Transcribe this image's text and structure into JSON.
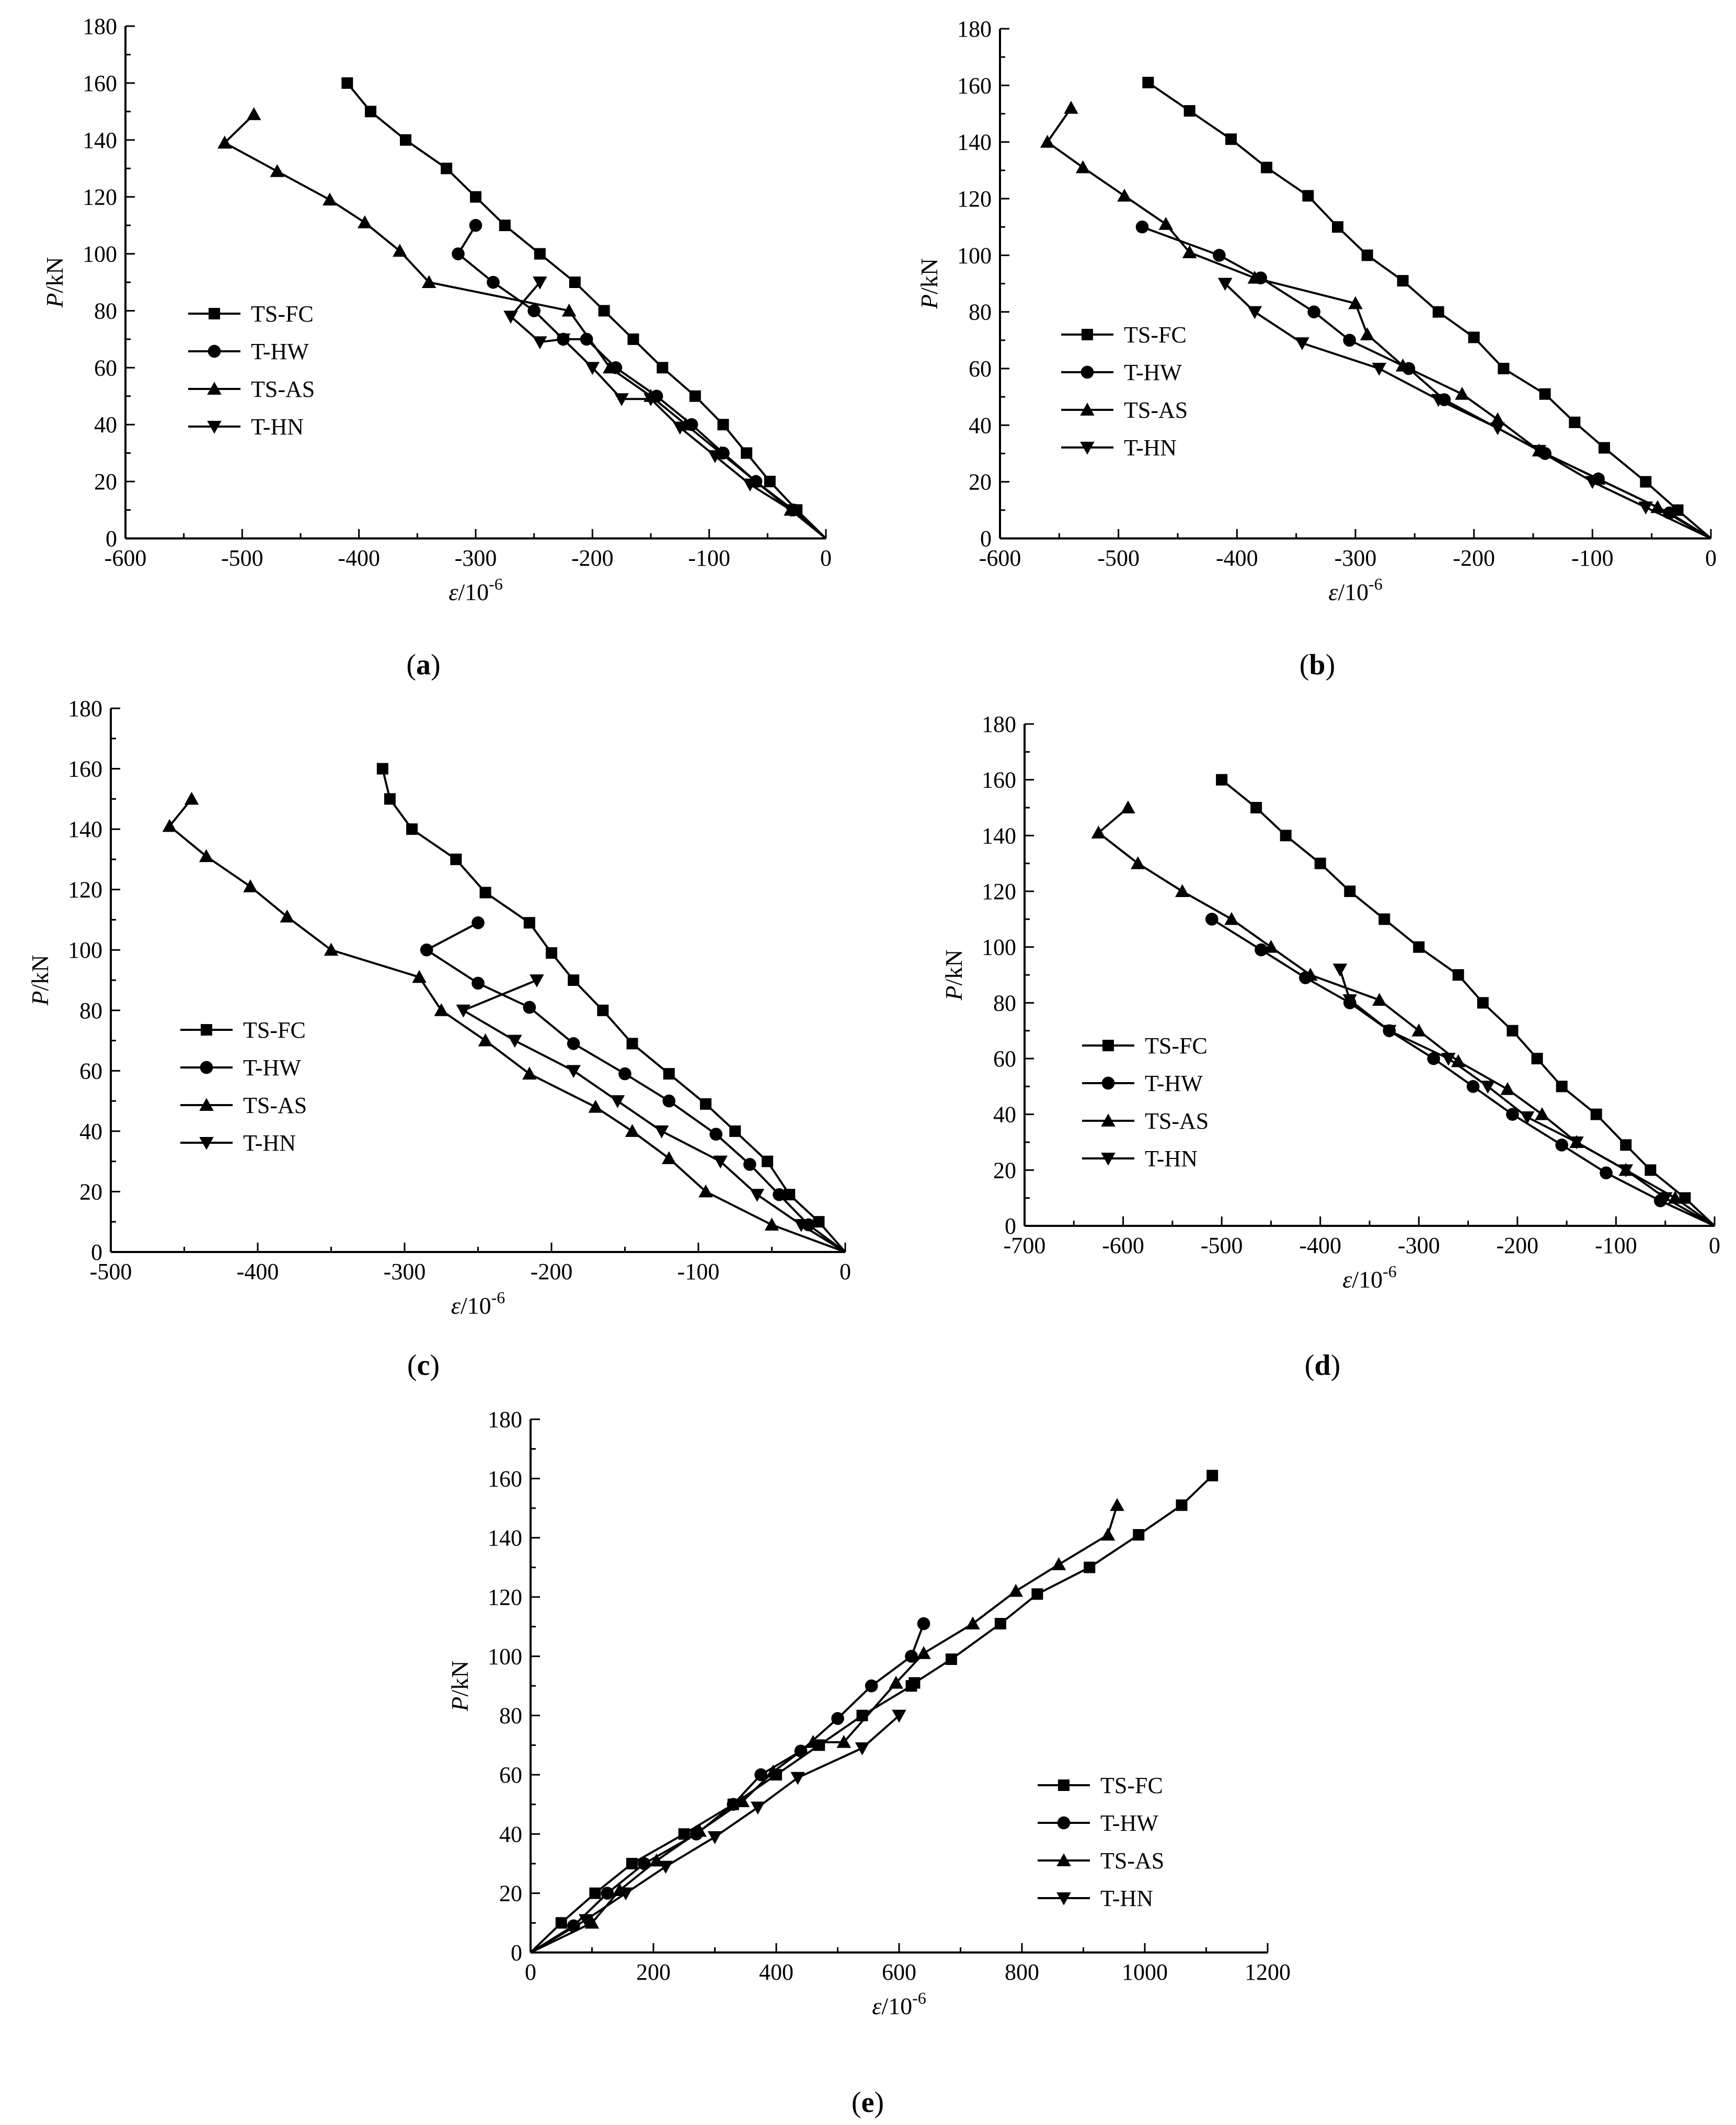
{
  "figure": {
    "background": "#ffffff",
    "line_color": "#000000"
  },
  "chart_data": [
    {
      "id": "a",
      "type": "line",
      "caption": "(a)",
      "caption_parts": [
        "(",
        "a",
        ")"
      ],
      "xlabel": "ε/10⁻⁶",
      "xlabel_parts": [
        "ε",
        "/10",
        "-6"
      ],
      "ylabel": "P/kN",
      "ylabel_parts": [
        "P",
        "/kN"
      ],
      "xlim": [
        -600,
        0
      ],
      "ylim": [
        0,
        180
      ],
      "xticks": [
        -600,
        -500,
        -400,
        -300,
        -200,
        -100,
        0
      ],
      "yticks": [
        0,
        20,
        40,
        60,
        80,
        100,
        120,
        140,
        160,
        180
      ],
      "legend_position": "center-left",
      "series": [
        {
          "name": "TS-FC",
          "marker": "square",
          "x": [
            0,
            -25,
            -48,
            -68,
            -88,
            -112,
            -140,
            -165,
            -190,
            -215,
            -245,
            -275,
            -300,
            -325,
            -360,
            -390,
            -410
          ],
          "y": [
            0,
            10,
            20,
            30,
            40,
            50,
            60,
            70,
            80,
            90,
            100,
            110,
            120,
            130,
            140,
            150,
            160
          ]
        },
        {
          "name": "T-HW",
          "marker": "circle",
          "x": [
            0,
            -28,
            -60,
            -88,
            -115,
            -145,
            -180,
            -205,
            -225,
            -250,
            -285,
            -315,
            -300
          ],
          "y": [
            0,
            10,
            20,
            30,
            40,
            50,
            60,
            70,
            70,
            80,
            90,
            100,
            110
          ]
        },
        {
          "name": "TS-AS",
          "marker": "triangle-up",
          "x": [
            0,
            -30,
            -60,
            -90,
            -120,
            -150,
            -185,
            -220,
            -340,
            -365,
            -395,
            -425,
            -470,
            -515,
            -490
          ],
          "y": [
            0,
            10,
            20,
            30,
            40,
            50,
            60,
            80,
            90,
            101,
            111,
            119,
            129,
            139,
            149
          ]
        },
        {
          "name": "T-HN",
          "marker": "triangle-down",
          "x": [
            0,
            -30,
            -65,
            -95,
            -125,
            -150,
            -175,
            -200,
            -225,
            -245,
            -270,
            -245
          ],
          "y": [
            0,
            10,
            19,
            29,
            39,
            49,
            49,
            60,
            70,
            69,
            78,
            90
          ]
        }
      ]
    },
    {
      "id": "b",
      "type": "line",
      "caption": "(b)",
      "caption_parts": [
        "(",
        "b",
        ")"
      ],
      "xlabel": "ε/10⁻⁶",
      "xlabel_parts": [
        "ε",
        "/10",
        "-6"
      ],
      "ylabel": "P/kN",
      "ylabel_parts": [
        "P",
        "/kN"
      ],
      "xlim": [
        -600,
        0
      ],
      "ylim": [
        0,
        180
      ],
      "xticks": [
        -600,
        -500,
        -400,
        -300,
        -200,
        -100,
        0
      ],
      "yticks": [
        0,
        20,
        40,
        60,
        80,
        100,
        120,
        140,
        160,
        180
      ],
      "legend_position": "center-left",
      "series": [
        {
          "name": "TS-FC",
          "marker": "square",
          "x": [
            0,
            -28,
            -55,
            -90,
            -115,
            -140,
            -175,
            -200,
            -230,
            -260,
            -290,
            -315,
            -340,
            -375,
            -405,
            -440,
            -475
          ],
          "y": [
            0,
            10,
            20,
            32,
            41,
            51,
            60,
            71,
            80,
            91,
            100,
            110,
            121,
            131,
            141,
            151,
            161
          ]
        },
        {
          "name": "T-HW",
          "marker": "circle",
          "x": [
            0,
            -35,
            -95,
            -140,
            -225,
            -255,
            -305,
            -335,
            -380,
            -415,
            -480
          ],
          "y": [
            0,
            9,
            21,
            30,
            49,
            60,
            70,
            80,
            92,
            100,
            110
          ]
        },
        {
          "name": "TS-AS",
          "marker": "triangle-up",
          "x": [
            0,
            -45,
            -95,
            -145,
            -180,
            -210,
            -260,
            -290,
            -300,
            -385,
            -440,
            -460,
            -495,
            -530,
            -560,
            -540
          ],
          "y": [
            0,
            11,
            21,
            31,
            42,
            51,
            61,
            72,
            83,
            92,
            101,
            111,
            121,
            131,
            140,
            152
          ]
        },
        {
          "name": "T-HN",
          "marker": "triangle-down",
          "x": [
            0,
            -55,
            -100,
            -145,
            -180,
            -230,
            -280,
            -345,
            -385,
            -410
          ],
          "y": [
            0,
            11,
            20,
            31,
            39,
            49,
            60,
            69,
            80,
            90
          ]
        }
      ]
    },
    {
      "id": "c",
      "type": "line",
      "caption": "(c)",
      "caption_parts": [
        "(",
        "c",
        ")"
      ],
      "xlabel": "ε/10⁻⁶",
      "xlabel_parts": [
        "ε",
        "/10",
        "-6"
      ],
      "ylabel": "P/kN",
      "ylabel_parts": [
        "P",
        "/kN"
      ],
      "xlim": [
        -500,
        0
      ],
      "ylim": [
        0,
        180
      ],
      "xticks": [
        -500,
        -400,
        -300,
        -200,
        -100,
        0
      ],
      "yticks": [
        0,
        20,
        40,
        60,
        80,
        100,
        120,
        140,
        160,
        180
      ],
      "legend_position": "center-left",
      "series": [
        {
          "name": "TS-FC",
          "marker": "square",
          "x": [
            0,
            -18,
            -38,
            -53,
            -75,
            -95,
            -120,
            -145,
            -165,
            -185,
            -200,
            -215,
            -245,
            -265,
            -295,
            -310,
            -315
          ],
          "y": [
            0,
            10,
            19,
            30,
            40,
            49,
            59,
            69,
            80,
            90,
            99,
            109,
            119,
            130,
            140,
            150,
            160
          ]
        },
        {
          "name": "T-HW",
          "marker": "circle",
          "x": [
            0,
            -25,
            -45,
            -65,
            -88,
            -120,
            -150,
            -185,
            -215,
            -250,
            -285,
            -250
          ],
          "y": [
            0,
            9,
            19,
            29,
            39,
            50,
            59,
            69,
            81,
            89,
            100,
            109
          ]
        },
        {
          "name": "TS-AS",
          "marker": "triangle-up",
          "x": [
            0,
            -50,
            -95,
            -120,
            -145,
            -170,
            -215,
            -245,
            -275,
            -290,
            -350,
            -380,
            -405,
            -435,
            -460,
            -445
          ],
          "y": [
            0,
            9,
            20,
            31,
            40,
            48,
            59,
            70,
            80,
            91,
            100,
            111,
            121,
            131,
            141,
            150
          ]
        },
        {
          "name": "T-HN",
          "marker": "triangle-down",
          "x": [
            0,
            -30,
            -60,
            -85,
            -125,
            -155,
            -185,
            -225,
            -260,
            -210
          ],
          "y": [
            0,
            9,
            19,
            30,
            40,
            50,
            60,
            70,
            80,
            90
          ]
        }
      ]
    },
    {
      "id": "d",
      "type": "line",
      "caption": "(d)",
      "caption_parts": [
        "(",
        "d",
        ")"
      ],
      "xlabel": "ε/10⁻⁶",
      "xlabel_parts": [
        "ε",
        "/10",
        "-6"
      ],
      "ylabel": "P/kN",
      "ylabel_parts": [
        "P",
        "/kN"
      ],
      "xlim": [
        -700,
        0
      ],
      "ylim": [
        0,
        180
      ],
      "xticks": [
        -700,
        -600,
        -500,
        -400,
        -300,
        -200,
        -100,
        0
      ],
      "yticks": [
        0,
        20,
        40,
        60,
        80,
        100,
        120,
        140,
        160,
        180
      ],
      "legend_position": "center-left",
      "series": [
        {
          "name": "TS-FC",
          "marker": "square",
          "x": [
            0,
            -30,
            -65,
            -90,
            -120,
            -155,
            -180,
            -205,
            -235,
            -260,
            -300,
            -335,
            -370,
            -400,
            -435,
            -465,
            -500
          ],
          "y": [
            0,
            10,
            20,
            29,
            40,
            50,
            60,
            70,
            80,
            90,
            100,
            110,
            120,
            130,
            140,
            150,
            160
          ]
        },
        {
          "name": "T-HW",
          "marker": "circle",
          "x": [
            0,
            -55,
            -110,
            -155,
            -205,
            -245,
            -285,
            -330,
            -370,
            -415,
            -460,
            -510
          ],
          "y": [
            0,
            9,
            19,
            29,
            40,
            50,
            60,
            70,
            80,
            89,
            99,
            110
          ]
        },
        {
          "name": "TS-AS",
          "marker": "triangle-up",
          "x": [
            0,
            -40,
            -90,
            -140,
            -175,
            -210,
            -260,
            -300,
            -340,
            -410,
            -450,
            -490,
            -540,
            -585,
            -625,
            -595
          ],
          "y": [
            0,
            10,
            20,
            30,
            40,
            49,
            59,
            70,
            81,
            90,
            100,
            110,
            120,
            130,
            141,
            150
          ]
        },
        {
          "name": "T-HN",
          "marker": "triangle-down",
          "x": [
            0,
            -50,
            -90,
            -140,
            -190,
            -230,
            -270,
            -330,
            -370,
            -380
          ],
          "y": [
            0,
            10,
            20,
            30,
            39,
            50,
            60,
            70,
            81,
            92
          ]
        }
      ]
    },
    {
      "id": "e",
      "type": "line",
      "caption": "(e)",
      "caption_parts": [
        "(",
        "e",
        ")"
      ],
      "xlabel": "ε/10⁻⁶",
      "xlabel_parts": [
        "ε",
        "/10",
        "-6"
      ],
      "ylabel": "P/kN",
      "ylabel_parts": [
        "P",
        "/kN"
      ],
      "xlim": [
        0,
        1200
      ],
      "ylim": [
        0,
        180
      ],
      "xticks": [
        0,
        200,
        400,
        600,
        800,
        1000,
        1200
      ],
      "yticks": [
        0,
        20,
        40,
        60,
        80,
        100,
        120,
        140,
        160,
        180
      ],
      "legend_position": "center-right",
      "series": [
        {
          "name": "TS-FC",
          "marker": "square",
          "x": [
            0,
            50,
            105,
            165,
            250,
            330,
            400,
            470,
            540,
            620,
            625,
            685,
            765,
            825,
            910,
            990,
            1060,
            1110
          ],
          "y": [
            0,
            10,
            20,
            30,
            40,
            50,
            60,
            70,
            80,
            90,
            91,
            99,
            111,
            121,
            130,
            141,
            151,
            161
          ]
        },
        {
          "name": "T-HW",
          "marker": "circle",
          "x": [
            0,
            70,
            125,
            185,
            270,
            330,
            375,
            440,
            500,
            555,
            620,
            640
          ],
          "y": [
            0,
            9,
            20,
            30,
            40,
            50,
            60,
            68,
            79,
            90,
            100,
            111
          ]
        },
        {
          "name": "TS-AS",
          "marker": "triangle-up",
          "x": [
            0,
            100,
            145,
            205,
            275,
            345,
            395,
            460,
            510,
            595,
            640,
            720,
            790,
            860,
            940,
            955
          ],
          "y": [
            0,
            10,
            21,
            31,
            41,
            51,
            61,
            71,
            71,
            91,
            101,
            111,
            122,
            131,
            141,
            151
          ]
        },
        {
          "name": "T-HN",
          "marker": "triangle-down",
          "x": [
            0,
            90,
            155,
            220,
            300,
            370,
            435,
            540,
            600
          ],
          "y": [
            0,
            11,
            20,
            29,
            39,
            49,
            59,
            69,
            80
          ]
        }
      ]
    }
  ]
}
